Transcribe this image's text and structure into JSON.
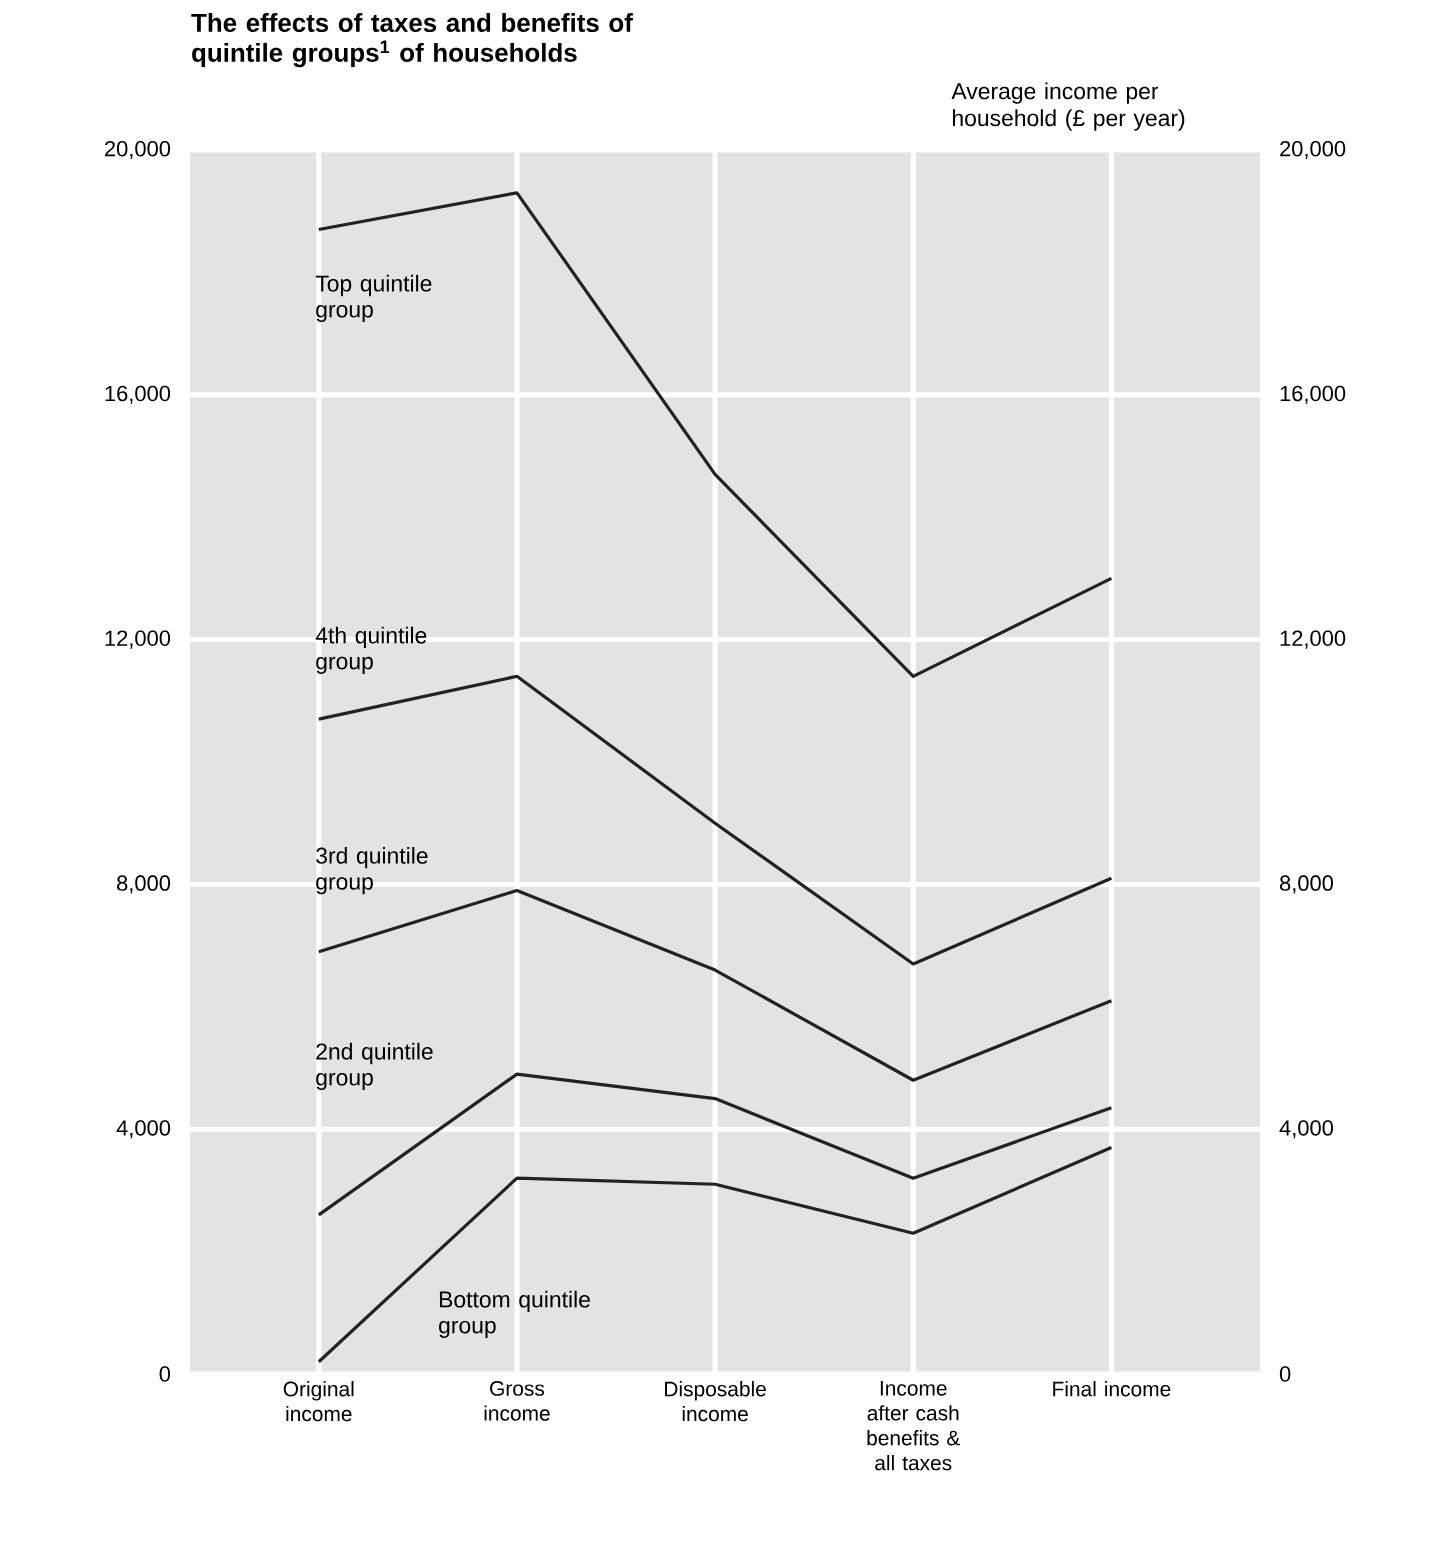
{
  "chart_data": {
    "type": "line",
    "title": "The effects of taxes and benefits of quintile groups$^{1}$ of households",
    "y2label": "Average income per household (£ per year)",
    "categories": [
      "Original income",
      "Gross income",
      "Disposable income",
      "Income after cash benefits & all taxes",
      "Final income"
    ],
    "series": [
      {
        "name": "Top quintile group",
        "color": "#222222",
        "values": [
          18700,
          19300,
          14700,
          11400,
          13000
        ]
      },
      {
        "name": "4th quintile group",
        "color": "#222222",
        "values": [
          10700,
          11400,
          9000,
          6700,
          8100
        ]
      },
      {
        "name": "3rd quintile group",
        "color": "#222222",
        "values": [
          6900,
          7900,
          6600,
          4800,
          6100
        ]
      },
      {
        "name": "2nd quintile group",
        "color": "#222222",
        "values": [
          2600,
          4900,
          4500,
          3200,
          4350
        ]
      },
      {
        "name": "Bottom quintile group",
        "color": "#222222",
        "values": [
          200,
          3200,
          3100,
          2300,
          3700
        ]
      }
    ],
    "ylim": [
      0,
      20000
    ],
    "yticks": [
      {
        "value": 0,
        "label": "0"
      },
      {
        "value": 4000,
        "label": "4,000"
      },
      {
        "value": 8000,
        "label": "8,000"
      },
      {
        "value": 12000,
        "label": "12,000"
      },
      {
        "value": 16000,
        "label": "16,000"
      },
      {
        "value": 20000,
        "label": "20,000"
      }
    ],
    "y2lim": [
      0,
      20000
    ],
    "y2ticks": [
      {
        "value": 0,
        "label": "0"
      },
      {
        "value": 4000,
        "label": "4,000"
      },
      {
        "value": 8000,
        "label": "8,000"
      },
      {
        "value": 12000,
        "label": "12,000"
      },
      {
        "value": 16000,
        "label": "16,000"
      },
      {
        "value": 20000,
        "label": "20,000"
      }
    ],
    "grid": true,
    "marker": "none",
    "line_style": "solid"
  }
}
